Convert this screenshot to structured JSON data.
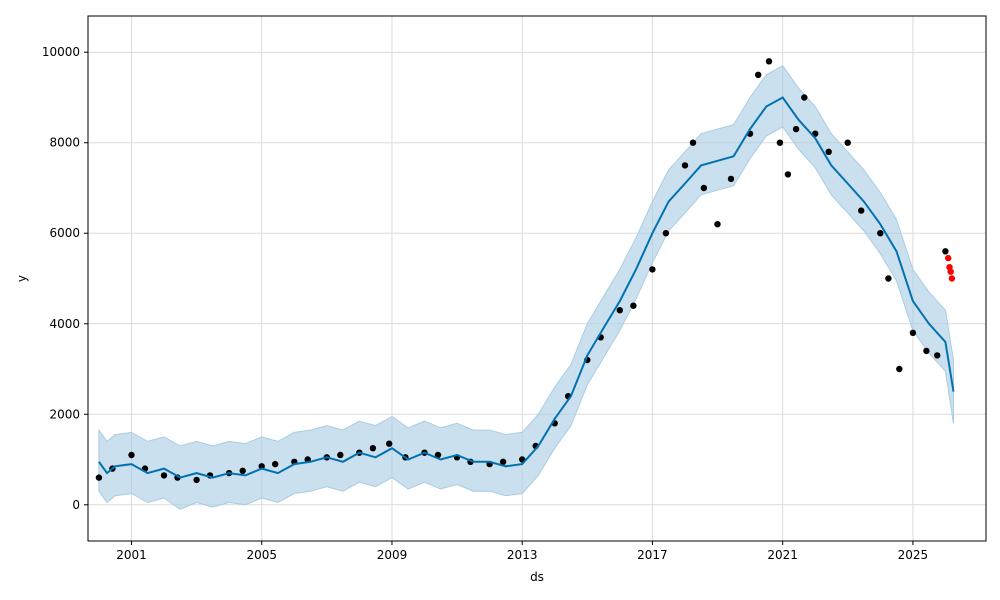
{
  "chart_data": {
    "type": "line",
    "title": "",
    "xlabel": "ds",
    "ylabel": "y",
    "x_type": "date",
    "xlim": [
      "1999-09-01",
      "2027-04-01"
    ],
    "ylim": [
      -800,
      10800
    ],
    "grid": true,
    "legend": "none",
    "x_ticks": [
      {
        "date": "2001-01-01",
        "label": "2001"
      },
      {
        "date": "2005-01-01",
        "label": "2005"
      },
      {
        "date": "2009-01-01",
        "label": "2009"
      },
      {
        "date": "2013-01-01",
        "label": "2013"
      },
      {
        "date": "2017-01-01",
        "label": "2017"
      },
      {
        "date": "2021-01-01",
        "label": "2021"
      },
      {
        "date": "2025-01-01",
        "label": "2025"
      }
    ],
    "y_ticks": [
      {
        "value": 0,
        "label": "0"
      },
      {
        "value": 2000,
        "label": "2000"
      },
      {
        "value": 4000,
        "label": "4000"
      },
      {
        "value": 6000,
        "label": "6000"
      },
      {
        "value": 8000,
        "label": "8000"
      },
      {
        "value": 10000,
        "label": "10000"
      }
    ],
    "colors": {
      "forecast": "#0072B2",
      "interval": "#a9cce3",
      "observed": "#000000",
      "holdout": "#ff0000"
    },
    "forecast": {
      "x": [
        "2000-01-01",
        "2000-04-01",
        "2000-07-01",
        "2001-01-01",
        "2001-07-01",
        "2002-01-01",
        "2002-07-01",
        "2003-01-01",
        "2003-07-01",
        "2004-01-01",
        "2004-07-01",
        "2005-01-01",
        "2005-07-01",
        "2006-01-01",
        "2006-07-01",
        "2007-01-01",
        "2007-07-01",
        "2008-01-01",
        "2008-07-01",
        "2009-01-01",
        "2009-07-01",
        "2010-01-01",
        "2010-07-01",
        "2011-01-01",
        "2011-07-01",
        "2012-01-01",
        "2012-07-01",
        "2013-01-01",
        "2013-07-01",
        "2014-01-01",
        "2014-07-01",
        "2015-01-01",
        "2015-07-01",
        "2016-01-01",
        "2016-07-01",
        "2017-01-01",
        "2017-07-01",
        "2018-01-01",
        "2018-07-01",
        "2019-01-01",
        "2019-07-01",
        "2020-01-01",
        "2020-07-01",
        "2021-01-01",
        "2021-07-01",
        "2022-01-01",
        "2022-07-01",
        "2023-01-01",
        "2023-07-01",
        "2024-01-01",
        "2024-07-01",
        "2025-01-01",
        "2025-07-01",
        "2026-01-01",
        "2026-04-01"
      ],
      "yhat": [
        950,
        700,
        850,
        900,
        700,
        800,
        600,
        700,
        600,
        700,
        650,
        800,
        700,
        900,
        950,
        1050,
        950,
        1150,
        1050,
        1250,
        1000,
        1150,
        1000,
        1100,
        950,
        950,
        850,
        900,
        1300,
        1900,
        2400,
        3300,
        3900,
        4500,
        5200,
        6000,
        6700,
        7100,
        7500,
        7600,
        7700,
        8300,
        8800,
        9000,
        8500,
        8100,
        7500,
        7100,
        6700,
        6200,
        5600,
        4500,
        4000,
        3600,
        2500
      ],
      "lower": [
        300,
        50,
        200,
        250,
        50,
        150,
        -100,
        50,
        -50,
        50,
        0,
        150,
        50,
        250,
        300,
        400,
        300,
        500,
        400,
        600,
        350,
        500,
        350,
        450,
        300,
        300,
        200,
        250,
        650,
        1250,
        1750,
        2650,
        3250,
        3850,
        4550,
        5350,
        6050,
        6450,
        6850,
        6950,
        7050,
        7650,
        8150,
        8350,
        7850,
        7450,
        6850,
        6450,
        6050,
        5550,
        4950,
        3850,
        3350,
        2950,
        1800
      ],
      "upper": [
        1650,
        1400,
        1550,
        1600,
        1400,
        1500,
        1300,
        1400,
        1300,
        1400,
        1350,
        1500,
        1400,
        1600,
        1650,
        1750,
        1650,
        1850,
        1750,
        1950,
        1700,
        1850,
        1700,
        1800,
        1650,
        1650,
        1550,
        1600,
        2000,
        2600,
        3100,
        4000,
        4600,
        5200,
        5900,
        6700,
        7400,
        7800,
        8200,
        8300,
        8400,
        9000,
        9500,
        9700,
        9200,
        8800,
        8200,
        7800,
        7400,
        6900,
        6300,
        5200,
        4700,
        4300,
        3200
      ]
    },
    "observed": {
      "x": [
        "2000-01-01",
        "2000-06-01",
        "2001-01-01",
        "2001-06-01",
        "2002-01-01",
        "2002-06-01",
        "2003-01-01",
        "2003-06-01",
        "2004-01-01",
        "2004-06-01",
        "2005-01-01",
        "2005-06-01",
        "2006-01-01",
        "2006-06-01",
        "2007-01-01",
        "2007-06-01",
        "2008-01-01",
        "2008-06-01",
        "2008-12-01",
        "2009-06-01",
        "2010-01-01",
        "2010-06-01",
        "2011-01-01",
        "2011-06-01",
        "2012-01-01",
        "2012-06-01",
        "2013-01-01",
        "2013-06-01",
        "2014-01-01",
        "2014-06-01",
        "2015-01-01",
        "2015-06-01",
        "2016-01-01",
        "2016-06-01",
        "2017-01-01",
        "2017-06-01",
        "2018-01-01",
        "2018-04-01",
        "2018-08-01",
        "2019-01-01",
        "2019-06-01",
        "2020-01-01",
        "2020-04-01",
        "2020-08-01",
        "2020-12-01",
        "2021-03-01",
        "2021-06-01",
        "2021-09-01",
        "2022-01-01",
        "2022-06-01",
        "2023-01-01",
        "2023-06-01",
        "2024-01-01",
        "2024-04-01",
        "2024-08-01",
        "2025-01-01",
        "2025-06-01",
        "2025-10-01",
        "2026-01-01"
      ],
      "y": [
        600,
        800,
        1100,
        800,
        650,
        600,
        550,
        650,
        700,
        750,
        850,
        900,
        950,
        1000,
        1050,
        1100,
        1150,
        1250,
        1350,
        1050,
        1150,
        1100,
        1050,
        950,
        900,
        950,
        1000,
        1300,
        1800,
        2400,
        3200,
        3700,
        4300,
        4400,
        5200,
        6000,
        7500,
        8000,
        7000,
        6200,
        7200,
        8200,
        9500,
        9800,
        8000,
        7300,
        8300,
        9000,
        8200,
        7800,
        8000,
        6500,
        6000,
        5000,
        3000,
        3800,
        3400,
        3300,
        5600
      ]
    },
    "holdout": {
      "x": [
        "2026-02-01",
        "2026-02-15",
        "2026-03-01",
        "2026-03-15"
      ],
      "y": [
        5450,
        5250,
        5150,
        5000
      ]
    }
  }
}
